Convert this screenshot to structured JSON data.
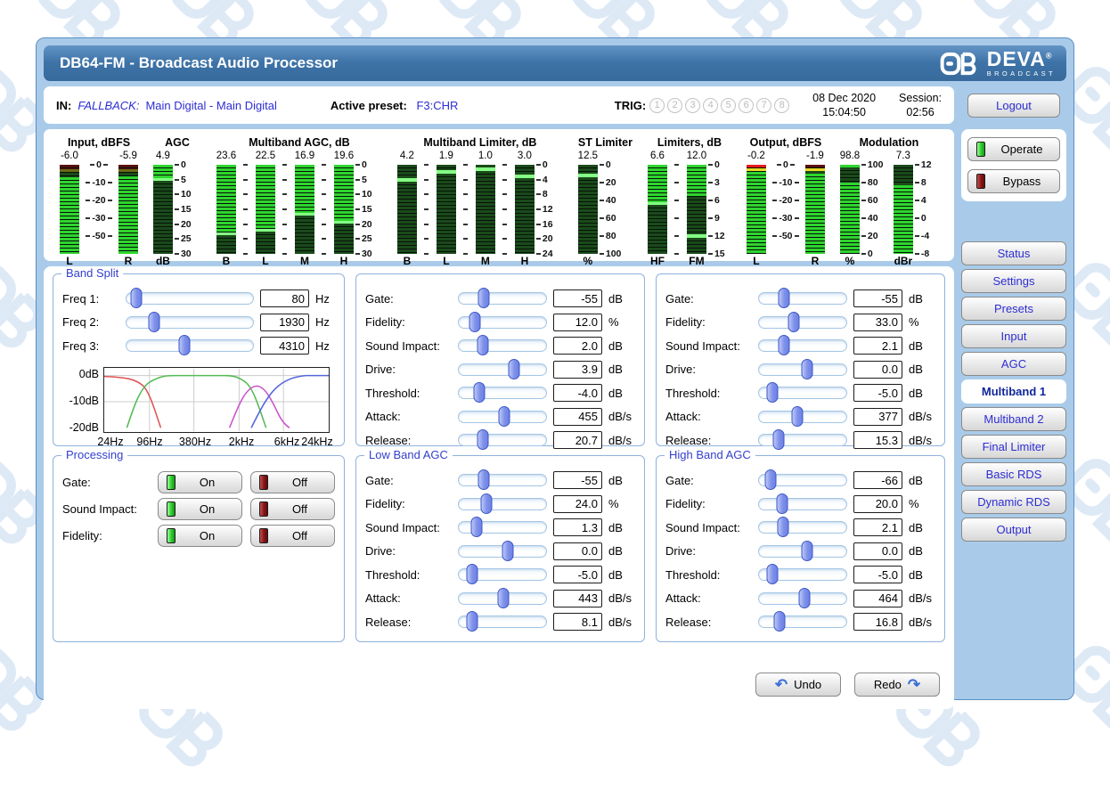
{
  "window": {
    "title": "DB64-FM - Broadcast Audio Processor"
  },
  "brand": {
    "name": "DEVA",
    "registered": "®",
    "subtitle": "BROADCAST"
  },
  "header": {
    "in_label": "IN:",
    "in_mode": "FALLBACK:",
    "in_value": "Main Digital - Main Digital",
    "preset_label": "Active preset:",
    "preset_value": "F3:CHR",
    "trig_label": "TRIG:",
    "trig_buttons": [
      "1",
      "2",
      "3",
      "4",
      "5",
      "6",
      "7",
      "8"
    ],
    "date": "08 Dec 2020",
    "time": "15:04:50",
    "session_label": "Session:",
    "session_value": "02:56",
    "logout_label": "Logout"
  },
  "colors": {
    "titlebar": "#3e73a7",
    "link_blue": "#2d2dd4",
    "legend_blue": "#3340cc",
    "led_green": "#2ed52e",
    "led_off_red": "#8a1414"
  },
  "meters": {
    "led_colors": {
      "lit": "#2ed52e",
      "dim": "#1a4a1a",
      "line": "#85ff85",
      "red": "#e51a1a",
      "darkred": "#571010",
      "yellow": "#ead823",
      "olive": "#6a6a15"
    },
    "groups": [
      {
        "title": "Input, dBFS",
        "items": [
          {
            "t": "bar",
            "value": "-6.0",
            "label": "L",
            "zones": [
              [
                "darkred",
                0,
                5
              ],
              [
                "olive",
                5,
                9
              ],
              [
                "dim",
                9,
                14
              ],
              [
                "lit",
                14,
                100
              ]
            ]
          },
          {
            "t": "scale",
            "labels": [
              "0",
              "-10",
              "-20",
              "-30",
              "-50"
            ],
            "span": 80,
            "mode": "center",
            "w": 44
          },
          {
            "t": "bar",
            "value": "-5.9",
            "label": "R",
            "zones": [
              [
                "darkred",
                0,
                5
              ],
              [
                "olive",
                5,
                9
              ],
              [
                "dim",
                9,
                13
              ],
              [
                "lit",
                13,
                100
              ]
            ]
          }
        ]
      },
      {
        "title": "AGC",
        "items": [
          {
            "t": "bar",
            "value": "4.9",
            "label": "dB",
            "zones": [
              [
                "lit",
                0,
                15
              ],
              [
                "line",
                15,
                18
              ],
              [
                "dim",
                18,
                100
              ]
            ]
          },
          {
            "t": "scale",
            "labels": [
              "0",
              "5",
              "10",
              "15",
              "20",
              "25",
              "30"
            ],
            "span": 100,
            "mode": "right",
            "w": 32
          }
        ]
      },
      {
        "title": "Multiband AGC, dB",
        "items": [
          {
            "t": "bar",
            "value": "23.6",
            "label": "B",
            "zones": [
              [
                "lit",
                0,
                76
              ],
              [
                "line",
                76,
                79
              ],
              [
                "dim",
                79,
                100
              ]
            ]
          },
          {
            "t": "ticks",
            "count": 7,
            "span": 100,
            "w": 13
          },
          {
            "t": "bar",
            "value": "22.5",
            "label": "L",
            "zones": [
              [
                "lit",
                0,
                72
              ],
              [
                "line",
                72,
                75
              ],
              [
                "dim",
                75,
                100
              ]
            ]
          },
          {
            "t": "ticks",
            "count": 7,
            "span": 100,
            "w": 13
          },
          {
            "t": "bar",
            "value": "16.9",
            "label": "M",
            "zones": [
              [
                "lit",
                0,
                54
              ],
              [
                "line",
                54,
                57
              ],
              [
                "dim",
                57,
                100
              ]
            ]
          },
          {
            "t": "ticks",
            "count": 7,
            "span": 100,
            "w": 13
          },
          {
            "t": "bar",
            "value": "19.6",
            "label": "H",
            "zones": [
              [
                "lit",
                0,
                63
              ],
              [
                "line",
                63,
                66
              ],
              [
                "dim",
                66,
                100
              ]
            ]
          },
          {
            "t": "scale",
            "labels": [
              "0",
              "5",
              "10",
              "15",
              "20",
              "25",
              "30"
            ],
            "span": 100,
            "mode": "right",
            "w": 32
          }
        ]
      },
      {
        "title": "Multiband Limiter, dB",
        "items": [
          {
            "t": "bar",
            "value": "4.2",
            "label": "B",
            "zones": [
              [
                "dim",
                0,
                15
              ],
              [
                "line",
                15,
                19
              ],
              [
                "dim",
                19,
                100
              ]
            ]
          },
          {
            "t": "ticks",
            "count": 7,
            "span": 100,
            "w": 13
          },
          {
            "t": "bar",
            "value": "1.9",
            "label": "L",
            "zones": [
              [
                "dim",
                0,
                6
              ],
              [
                "line",
                6,
                10
              ],
              [
                "dim",
                10,
                100
              ]
            ]
          },
          {
            "t": "ticks",
            "count": 7,
            "span": 100,
            "w": 13
          },
          {
            "t": "bar",
            "value": "1.0",
            "label": "M",
            "zones": [
              [
                "dim",
                0,
                3
              ],
              [
                "line",
                3,
                7
              ],
              [
                "dim",
                7,
                100
              ]
            ]
          },
          {
            "t": "ticks",
            "count": 7,
            "span": 100,
            "w": 13
          },
          {
            "t": "bar",
            "value": "3.0",
            "label": "H",
            "zones": [
              [
                "dim",
                0,
                11
              ],
              [
                "line",
                11,
                15
              ],
              [
                "dim",
                15,
                100
              ]
            ]
          },
          {
            "t": "scale",
            "labels": [
              "0",
              "4",
              "8",
              "12",
              "16",
              "20",
              "24"
            ],
            "span": 100,
            "mode": "right",
            "w": 32
          }
        ]
      },
      {
        "title": "ST Limiter",
        "items": [
          {
            "t": "bar",
            "value": "12.5",
            "label": "%",
            "zones": [
              [
                "dim",
                0,
                10
              ],
              [
                "line",
                10,
                14
              ],
              [
                "dim",
                14,
                100
              ]
            ]
          },
          {
            "t": "scale",
            "labels": [
              "0",
              "20",
              "40",
              "60",
              "80",
              "100"
            ],
            "span": 100,
            "mode": "right",
            "w": 38
          }
        ]
      },
      {
        "title": "Limiters, dB",
        "items": [
          {
            "t": "bar",
            "value": "6.6",
            "label": "HF",
            "zones": [
              [
                "lit",
                0,
                42
              ],
              [
                "line",
                42,
                45
              ],
              [
                "dim",
                45,
                100
              ]
            ]
          },
          {
            "t": "ticks",
            "count": 6,
            "span": 100,
            "w": 13
          },
          {
            "t": "bar",
            "value": "12.0",
            "label": "FM",
            "zones": [
              [
                "lit",
                0,
                36
              ],
              [
                "dim",
                36,
                78
              ],
              [
                "line",
                78,
                82
              ],
              [
                "dim",
                82,
                100
              ]
            ]
          },
          {
            "t": "scale",
            "labels": [
              "0",
              "3",
              "6",
              "9",
              "12",
              "15"
            ],
            "span": 100,
            "mode": "right",
            "w": 28
          }
        ]
      },
      {
        "title": "Output, dBFS",
        "items": [
          {
            "t": "bar",
            "value": "-0.2",
            "label": "L",
            "zones": [
              [
                "red",
                0,
                4
              ],
              [
                "yellow",
                4,
                8
              ],
              [
                "lit",
                8,
                100
              ]
            ]
          },
          {
            "t": "scale",
            "labels": [
              "0",
              "-10",
              "-20",
              "-30",
              "-50"
            ],
            "span": 80,
            "mode": "center",
            "w": 44
          },
          {
            "t": "bar",
            "value": "-1.9",
            "label": "R",
            "zones": [
              [
                "darkred",
                0,
                4
              ],
              [
                "yellow",
                4,
                7
              ],
              [
                "dim",
                7,
                10
              ],
              [
                "lit",
                10,
                100
              ]
            ]
          }
        ]
      },
      {
        "title": "Modulation",
        "items": [
          {
            "t": "bar",
            "value": "98.8",
            "label": "%",
            "zones": [
              [
                "lit",
                0,
                3
              ],
              [
                "dim",
                3,
                20
              ],
              [
                "lit",
                20,
                100
              ]
            ]
          },
          {
            "t": "scale",
            "labels": [
              "100",
              "80",
              "60",
              "40",
              "20",
              "0"
            ],
            "span": 100,
            "mode": "right",
            "w": 38
          },
          {
            "t": "bar",
            "value": "7.3",
            "label": "dBr",
            "zones": [
              [
                "dim",
                0,
                23
              ],
              [
                "lit",
                23,
                100
              ]
            ]
          },
          {
            "t": "scale",
            "labels": [
              "12",
              "8",
              "4",
              "0",
              "-4",
              "-8"
            ],
            "span": 100,
            "mode": "right",
            "w": 28
          }
        ]
      }
    ]
  },
  "sidebar": {
    "operate_label": "Operate",
    "bypass_label": "Bypass",
    "nav": [
      {
        "label": "Status",
        "active": false
      },
      {
        "label": "Settings",
        "active": false
      },
      {
        "label": "Presets",
        "active": false
      },
      {
        "label": "Input",
        "active": false
      },
      {
        "label": "AGC",
        "active": false
      },
      {
        "label": "Multiband 1",
        "active": true
      },
      {
        "label": "Multiband 2",
        "active": false
      },
      {
        "label": "Final Limiter",
        "active": false
      },
      {
        "label": "Basic RDS",
        "active": false
      },
      {
        "label": "Dynamic RDS",
        "active": false
      },
      {
        "label": "Output",
        "active": false
      }
    ]
  },
  "band_split": {
    "legend": "Band Split",
    "rows": [
      {
        "label": "Freq 1:",
        "value": "80",
        "unit": "Hz",
        "pos": 3
      },
      {
        "label": "Freq 2:",
        "value": "1930",
        "unit": "Hz",
        "pos": 17
      },
      {
        "label": "Freq 3:",
        "value": "4310",
        "unit": "Hz",
        "pos": 41
      }
    ],
    "graph": {
      "y_labels": [
        "0dB",
        "-10dB",
        "-20dB"
      ],
      "x_labels": [
        "24Hz",
        "96Hz",
        "380Hz",
        "2kHz",
        "6kHz",
        "24kHz"
      ]
    }
  },
  "processing": {
    "legend": "Processing",
    "rows": [
      {
        "label": "Gate:",
        "on_label": "On",
        "off_label": "Off",
        "state": "on"
      },
      {
        "label": "Sound Impact:",
        "on_label": "On",
        "off_label": "Off",
        "state": "on"
      },
      {
        "label": "Fidelity:",
        "on_label": "On",
        "off_label": "Off",
        "state": "on"
      }
    ]
  },
  "panels": {
    "mid_band": {
      "legend": null,
      "rows": [
        {
          "label": "Gate:",
          "value": "-55",
          "unit": "dB",
          "pos": 21
        },
        {
          "label": "Fidelity:",
          "value": "12.0",
          "unit": "%",
          "pos": 11
        },
        {
          "label": "Sound Impact:",
          "value": "2.0",
          "unit": "dB",
          "pos": 20
        },
        {
          "label": "Drive:",
          "value": "3.9",
          "unit": "dB",
          "pos": 56
        },
        {
          "label": "Threshold:",
          "value": "-4.0",
          "unit": "dB",
          "pos": 16
        },
        {
          "label": "Attack:",
          "value": "455",
          "unit": "dB/s",
          "pos": 45
        },
        {
          "label": "Release:",
          "value": "20.7",
          "unit": "dB/s",
          "pos": 20
        }
      ]
    },
    "upper_right": {
      "legend": null,
      "rows": [
        {
          "label": "Gate:",
          "value": "-55",
          "unit": "dB",
          "pos": 21
        },
        {
          "label": "Fidelity:",
          "value": "33.0",
          "unit": "%",
          "pos": 33
        },
        {
          "label": "Sound Impact:",
          "value": "2.1",
          "unit": "dB",
          "pos": 21
        },
        {
          "label": "Drive:",
          "value": "0.0",
          "unit": "dB",
          "pos": 48
        },
        {
          "label": "Threshold:",
          "value": "-5.0",
          "unit": "dB",
          "pos": 8
        },
        {
          "label": "Attack:",
          "value": "377",
          "unit": "dB/s",
          "pos": 37
        },
        {
          "label": "Release:",
          "value": "15.3",
          "unit": "dB/s",
          "pos": 15
        }
      ]
    },
    "low_band": {
      "legend": "Low Band AGC",
      "rows": [
        {
          "label": "Gate:",
          "value": "-55",
          "unit": "dB",
          "pos": 21
        },
        {
          "label": "Fidelity:",
          "value": "24.0",
          "unit": "%",
          "pos": 24
        },
        {
          "label": "Sound Impact:",
          "value": "1.3",
          "unit": "dB",
          "pos": 13
        },
        {
          "label": "Drive:",
          "value": "0.0",
          "unit": "dB",
          "pos": 49
        },
        {
          "label": "Threshold:",
          "value": "-5.0",
          "unit": "dB",
          "pos": 8
        },
        {
          "label": "Attack:",
          "value": "443",
          "unit": "dB/s",
          "pos": 44
        },
        {
          "label": "Release:",
          "value": "8.1",
          "unit": "dB/s",
          "pos": 8
        }
      ]
    },
    "high_band": {
      "legend": "High Band AGC",
      "rows": [
        {
          "label": "Gate:",
          "value": "-66",
          "unit": "dB",
          "pos": 6
        },
        {
          "label": "Fidelity:",
          "value": "20.0",
          "unit": "%",
          "pos": 19
        },
        {
          "label": "Sound Impact:",
          "value": "2.1",
          "unit": "dB",
          "pos": 20
        },
        {
          "label": "Drive:",
          "value": "0.0",
          "unit": "dB",
          "pos": 48
        },
        {
          "label": "Threshold:",
          "value": "-5.0",
          "unit": "dB",
          "pos": 8
        },
        {
          "label": "Attack:",
          "value": "464",
          "unit": "dB/s",
          "pos": 45
        },
        {
          "label": "Release:",
          "value": "16.8",
          "unit": "dB/s",
          "pos": 16
        }
      ]
    }
  },
  "footer": {
    "undo_label": "Undo",
    "redo_label": "Redo"
  }
}
